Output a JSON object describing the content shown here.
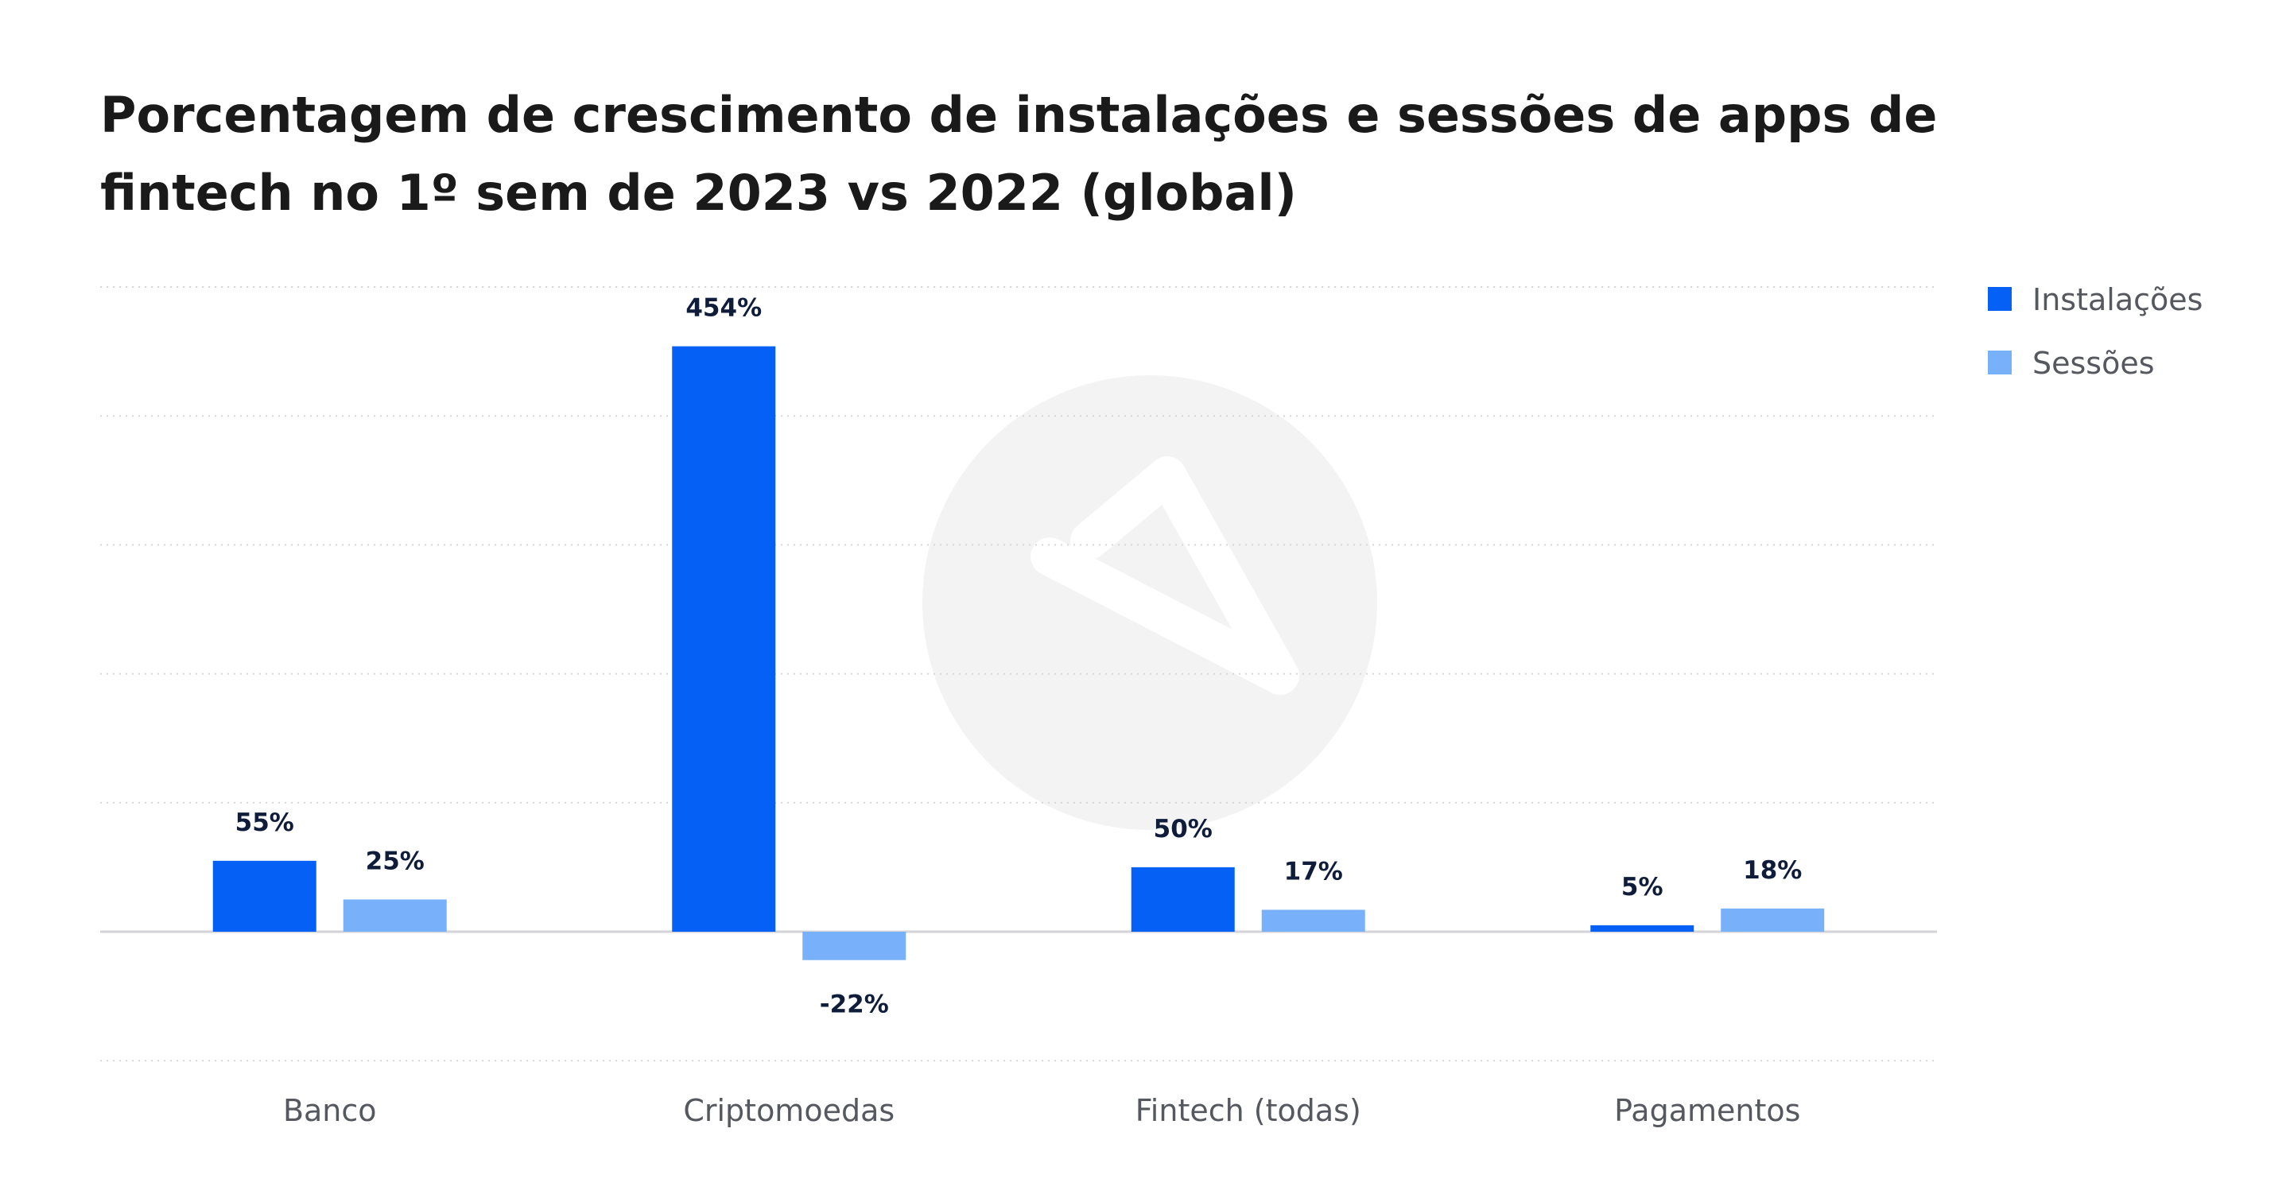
{
  "chart_data": {
    "type": "bar",
    "title": "Porcentagem de crescimento de instalações e sessões de apps de fintech no 1º sem de 2023 vs 2022 (global)",
    "categories": [
      "Banco",
      "Criptomoedas",
      "Fintech (todas)",
      "Pagamentos"
    ],
    "series": [
      {
        "name": "Instalações",
        "values": [
          55,
          454,
          50,
          5
        ],
        "color": "#0560f5"
      },
      {
        "name": "Sessões",
        "values": [
          25,
          -22,
          17,
          18
        ],
        "color": "#78b0fa"
      }
    ],
    "value_suffix": "%",
    "ylim": [
      -100,
      500
    ],
    "gridlines": [
      -100,
      100,
      200,
      300,
      400,
      500
    ],
    "grid": true,
    "y_axis_labels_shown": false,
    "legend_position": "top-right",
    "watermark": "logo"
  }
}
